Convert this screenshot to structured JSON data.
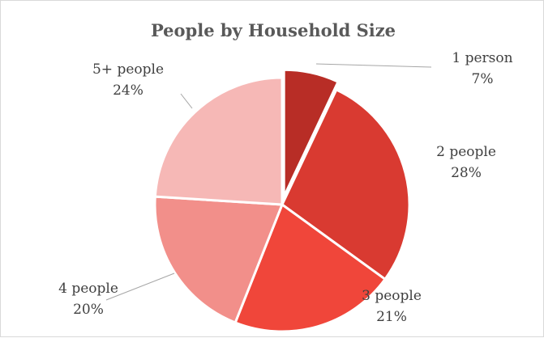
{
  "chart_data": {
    "type": "pie",
    "title": "People by Household Size",
    "categories": [
      "1 person",
      "2 people",
      "3 people",
      "4 people",
      "5+ people"
    ],
    "values": [
      7,
      28,
      21,
      20,
      24
    ],
    "value_labels": [
      "7%",
      "28%",
      "21%",
      "20%",
      "24%"
    ],
    "colors": [
      "#b82d26",
      "#d93a31",
      "#f0463a",
      "#f28f8a",
      "#f6b8b6"
    ],
    "exploded_slice": "1 person",
    "legend": "none",
    "data_labels": "outside with leader lines"
  }
}
